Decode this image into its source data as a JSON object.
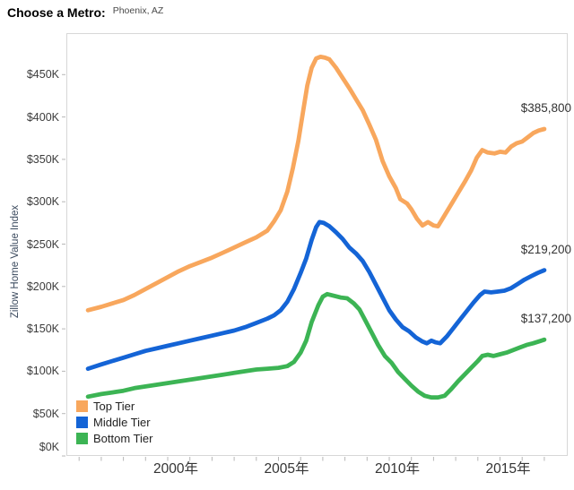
{
  "header": {
    "label": "Choose a Metro:",
    "value": "Phoenix, AZ"
  },
  "y_axis": {
    "title": "Zillow Home Value Index",
    "ticks": [
      {
        "label": "$0K",
        "value": 0
      },
      {
        "label": "$50K",
        "value": 50000
      },
      {
        "label": "$100K",
        "value": 100000
      },
      {
        "label": "$150K",
        "value": 150000
      },
      {
        "label": "$200K",
        "value": 200000
      },
      {
        "label": "$250K",
        "value": 250000
      },
      {
        "label": "$300K",
        "value": 300000
      },
      {
        "label": "$350K",
        "value": 350000
      },
      {
        "label": "$400K",
        "value": 400000
      },
      {
        "label": "$450K",
        "value": 450000
      }
    ]
  },
  "x_axis": {
    "labels": [
      {
        "text": "2000年",
        "year": 2000
      },
      {
        "text": "2005年",
        "year": 2005
      },
      {
        "text": "2010年",
        "year": 2010
      },
      {
        "text": "2015年",
        "year": 2015
      }
    ],
    "minor_tick_years": [
      1996,
      1997,
      1998,
      1999,
      2000,
      2001,
      2002,
      2003,
      2004,
      2005,
      2006,
      2007,
      2008,
      2009,
      2010,
      2011,
      2012,
      2013,
      2014,
      2015,
      2016,
      2017
    ]
  },
  "legend": [
    {
      "label": "Top Tier",
      "color": "#F8A75D"
    },
    {
      "label": "Middle Tier",
      "color": "#1464D6"
    },
    {
      "label": "Bottom Tier",
      "color": "#3CB454"
    }
  ],
  "chart_data": {
    "type": "line",
    "title": "",
    "xlabel": "",
    "ylabel": "Zillow Home Value Index",
    "x_range_years": [
      1995.5,
      2017.9
    ],
    "ylim": [
      0,
      500000
    ],
    "grid": false,
    "legend_position": "bottom-left",
    "series": [
      {
        "name": "Top Tier",
        "color": "#F8A75D",
        "end_label": "$385,800",
        "end_value": 385800,
        "points": [
          [
            1996.4,
            172000
          ],
          [
            1997,
            176000
          ],
          [
            1997.5,
            180000
          ],
          [
            1998,
            184000
          ],
          [
            1998.5,
            190000
          ],
          [
            1999,
            197000
          ],
          [
            1999.5,
            204000
          ],
          [
            2000,
            211000
          ],
          [
            2000.5,
            218000
          ],
          [
            2001,
            224000
          ],
          [
            2001.5,
            229000
          ],
          [
            2002,
            234000
          ],
          [
            2002.5,
            240000
          ],
          [
            2003,
            246000
          ],
          [
            2003.5,
            252000
          ],
          [
            2004,
            258000
          ],
          [
            2004.5,
            266000
          ],
          [
            2004.8,
            277000
          ],
          [
            2005.1,
            290000
          ],
          [
            2005.4,
            312000
          ],
          [
            2005.65,
            340000
          ],
          [
            2005.9,
            372000
          ],
          [
            2006.1,
            405000
          ],
          [
            2006.3,
            437000
          ],
          [
            2006.5,
            458000
          ],
          [
            2006.7,
            469000
          ],
          [
            2006.9,
            471000
          ],
          [
            2007.1,
            470000
          ],
          [
            2007.3,
            468000
          ],
          [
            2007.6,
            458000
          ],
          [
            2007.9,
            446000
          ],
          [
            2008.2,
            434000
          ],
          [
            2008.5,
            421000
          ],
          [
            2008.8,
            408000
          ],
          [
            2009.1,
            391000
          ],
          [
            2009.4,
            373000
          ],
          [
            2009.7,
            348000
          ],
          [
            2010,
            330000
          ],
          [
            2010.3,
            316000
          ],
          [
            2010.5,
            303000
          ],
          [
            2010.8,
            298000
          ],
          [
            2011,
            291000
          ],
          [
            2011.25,
            280000
          ],
          [
            2011.5,
            272000
          ],
          [
            2011.75,
            276000
          ],
          [
            2012,
            272000
          ],
          [
            2012.2,
            271000
          ],
          [
            2012.5,
            284000
          ],
          [
            2012.8,
            297000
          ],
          [
            2013.1,
            310000
          ],
          [
            2013.4,
            323000
          ],
          [
            2013.7,
            337000
          ],
          [
            2013.95,
            352000
          ],
          [
            2014.2,
            361000
          ],
          [
            2014.45,
            358000
          ],
          [
            2014.75,
            357000
          ],
          [
            2015,
            359000
          ],
          [
            2015.25,
            358000
          ],
          [
            2015.5,
            365000
          ],
          [
            2015.75,
            369000
          ],
          [
            2016,
            371000
          ],
          [
            2016.25,
            376000
          ],
          [
            2016.5,
            381000
          ],
          [
            2016.75,
            384000
          ],
          [
            2017,
            385800
          ]
        ]
      },
      {
        "name": "Middle Tier",
        "color": "#1464D6",
        "end_label": "$219,200",
        "end_value": 219200,
        "points": [
          [
            1996.4,
            103000
          ],
          [
            1997,
            108000
          ],
          [
            1997.5,
            112000
          ],
          [
            1998,
            116000
          ],
          [
            1998.5,
            120000
          ],
          [
            1999,
            124000
          ],
          [
            1999.5,
            127000
          ],
          [
            2000,
            130000
          ],
          [
            2000.5,
            133000
          ],
          [
            2001,
            136000
          ],
          [
            2001.5,
            139000
          ],
          [
            2002,
            142000
          ],
          [
            2002.5,
            145000
          ],
          [
            2003,
            148000
          ],
          [
            2003.5,
            152000
          ],
          [
            2004,
            157000
          ],
          [
            2004.5,
            162000
          ],
          [
            2004.8,
            166000
          ],
          [
            2005.1,
            172000
          ],
          [
            2005.4,
            182000
          ],
          [
            2005.7,
            197000
          ],
          [
            2006,
            216000
          ],
          [
            2006.25,
            233000
          ],
          [
            2006.5,
            255000
          ],
          [
            2006.7,
            270000
          ],
          [
            2006.85,
            276000
          ],
          [
            2007.05,
            275000
          ],
          [
            2007.3,
            271000
          ],
          [
            2007.6,
            264000
          ],
          [
            2007.9,
            256000
          ],
          [
            2008.2,
            246000
          ],
          [
            2008.5,
            239000
          ],
          [
            2008.8,
            230000
          ],
          [
            2009.1,
            217000
          ],
          [
            2009.4,
            202000
          ],
          [
            2009.7,
            187000
          ],
          [
            2010,
            172000
          ],
          [
            2010.3,
            161000
          ],
          [
            2010.6,
            152000
          ],
          [
            2010.9,
            147000
          ],
          [
            2011.2,
            140000
          ],
          [
            2011.5,
            135000
          ],
          [
            2011.7,
            133000
          ],
          [
            2011.9,
            136000
          ],
          [
            2012.1,
            134000
          ],
          [
            2012.3,
            133000
          ],
          [
            2012.6,
            141000
          ],
          [
            2012.9,
            151000
          ],
          [
            2013.2,
            161000
          ],
          [
            2013.5,
            171000
          ],
          [
            2013.8,
            181000
          ],
          [
            2014.1,
            190000
          ],
          [
            2014.3,
            194000
          ],
          [
            2014.6,
            193000
          ],
          [
            2014.9,
            194000
          ],
          [
            2015.2,
            195000
          ],
          [
            2015.5,
            198000
          ],
          [
            2015.8,
            203000
          ],
          [
            2016.1,
            208000
          ],
          [
            2016.4,
            212000
          ],
          [
            2016.7,
            216000
          ],
          [
            2017,
            219200
          ]
        ]
      },
      {
        "name": "Bottom Tier",
        "color": "#3CB454",
        "end_label": "$137,200",
        "end_value": 137200,
        "points": [
          [
            1996.4,
            70000
          ],
          [
            1997,
            73000
          ],
          [
            1997.5,
            75000
          ],
          [
            1998,
            77000
          ],
          [
            1998.5,
            80000
          ],
          [
            1999,
            82000
          ],
          [
            1999.5,
            84000
          ],
          [
            2000,
            86000
          ],
          [
            2000.5,
            88000
          ],
          [
            2001,
            90000
          ],
          [
            2001.5,
            92000
          ],
          [
            2002,
            94000
          ],
          [
            2002.5,
            96000
          ],
          [
            2003,
            98000
          ],
          [
            2003.5,
            100000
          ],
          [
            2004,
            102000
          ],
          [
            2004.5,
            103000
          ],
          [
            2005,
            104000
          ],
          [
            2005.4,
            106000
          ],
          [
            2005.7,
            111000
          ],
          [
            2006,
            122000
          ],
          [
            2006.25,
            136000
          ],
          [
            2006.5,
            158000
          ],
          [
            2006.8,
            178000
          ],
          [
            2007,
            188000
          ],
          [
            2007.2,
            191000
          ],
          [
            2007.5,
            189000
          ],
          [
            2007.8,
            187000
          ],
          [
            2008.1,
            186000
          ],
          [
            2008.4,
            180000
          ],
          [
            2008.65,
            173000
          ],
          [
            2008.9,
            161000
          ],
          [
            2009.2,
            146000
          ],
          [
            2009.5,
            131000
          ],
          [
            2009.8,
            118000
          ],
          [
            2010.1,
            110000
          ],
          [
            2010.4,
            99000
          ],
          [
            2010.7,
            91000
          ],
          [
            2011,
            83000
          ],
          [
            2011.3,
            76000
          ],
          [
            2011.6,
            71000
          ],
          [
            2011.9,
            69000
          ],
          [
            2012.2,
            69000
          ],
          [
            2012.5,
            71000
          ],
          [
            2012.8,
            79000
          ],
          [
            2013.1,
            88000
          ],
          [
            2013.4,
            96000
          ],
          [
            2013.7,
            104000
          ],
          [
            2014,
            112000
          ],
          [
            2014.2,
            118000
          ],
          [
            2014.45,
            119500
          ],
          [
            2014.7,
            118000
          ],
          [
            2015,
            120000
          ],
          [
            2015.3,
            122000
          ],
          [
            2015.6,
            125000
          ],
          [
            2015.9,
            128000
          ],
          [
            2016.2,
            131000
          ],
          [
            2016.5,
            133000
          ],
          [
            2016.8,
            135500
          ],
          [
            2017,
            137200
          ]
        ]
      }
    ]
  }
}
